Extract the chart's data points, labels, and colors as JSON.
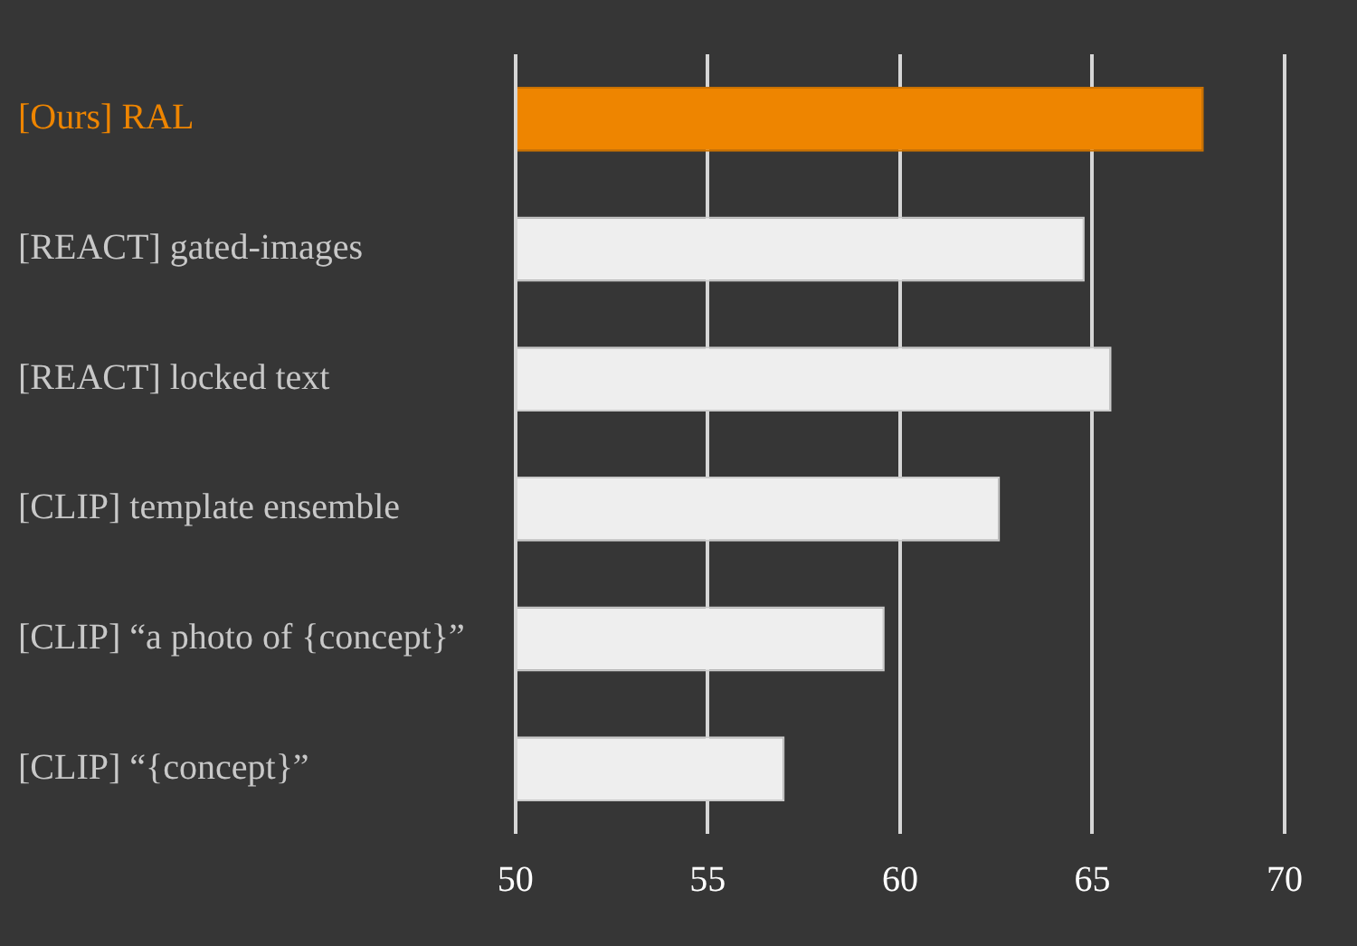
{
  "chart_data": {
    "type": "bar",
    "orientation": "horizontal",
    "categories": [
      "[Ours] RAL",
      "[REACT] gated-images",
      "[REACT] locked text",
      "[CLIP] template ensemble",
      "[CLIP] “a photo of {concept}”",
      "[CLIP] “{concept}”"
    ],
    "values": [
      67.9,
      64.8,
      65.5,
      62.6,
      59.6,
      57.0
    ],
    "colors": [
      "#ee8500",
      "#eeeeee",
      "#eeeeee",
      "#eeeeee",
      "#eeeeee",
      "#eeeeee"
    ],
    "xlim": [
      50,
      70
    ],
    "xticks": [
      50,
      55,
      60,
      65,
      70
    ],
    "grid": "x",
    "legend": false
  }
}
